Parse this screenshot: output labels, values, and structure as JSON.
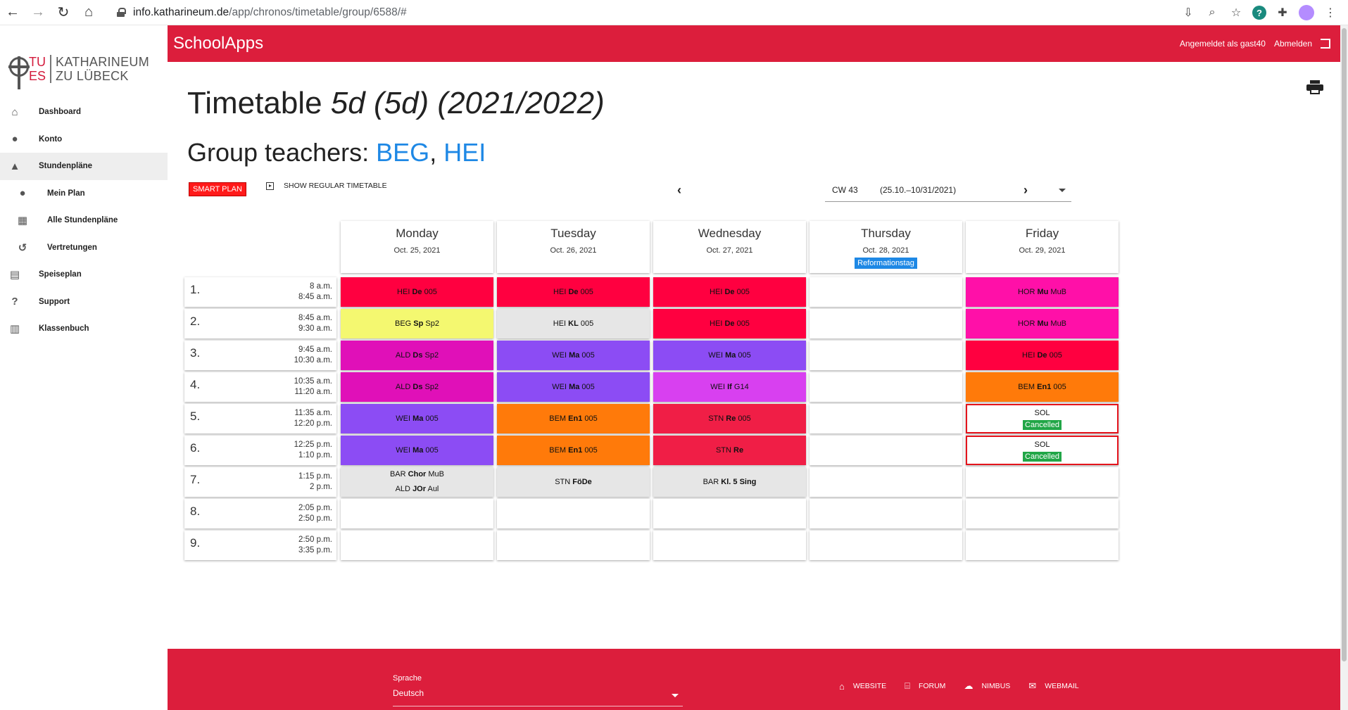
{
  "browser": {
    "url_host": "info.katharineum.de",
    "url_path": "/app/chronos/timetable/group/6588/#"
  },
  "logo": {
    "tues_top": "TU",
    "tues_bottom": "ES",
    "name_line1": "KATHARINEUM",
    "name_line2": "ZU LÜBECK"
  },
  "sidebar": {
    "items": [
      {
        "label": "Dashboard",
        "icon": "home-icon"
      },
      {
        "label": "Konto",
        "icon": "person-icon"
      },
      {
        "label": "Stundenpläne",
        "icon": "school-icon"
      },
      {
        "label": "Mein Plan",
        "icon": "person-icon"
      },
      {
        "label": "Alle Stundenpläne",
        "icon": "grid-icon"
      },
      {
        "label": "Vertretungen",
        "icon": "history-icon"
      },
      {
        "label": "Speiseplan",
        "icon": "pdf-icon"
      },
      {
        "label": "Support",
        "icon": "help-icon"
      },
      {
        "label": "Klassenbuch",
        "icon": "book-icon"
      }
    ]
  },
  "header": {
    "app_title": "SchoolApps",
    "logged_in": "Angemeldet als gast40",
    "logout": "Abmelden"
  },
  "page": {
    "title_plain": "Timetable",
    "title_italic": "5d (5d) (2021/2022)",
    "group_teachers_label": "Group teachers:",
    "teacher1": "BEG",
    "teacher_sep": ",",
    "teacher2": "HEI",
    "smart_plan": "SMART PLAN",
    "show_regular": "SHOW REGULAR TIMETABLE"
  },
  "week": {
    "cw": "CW 43",
    "range": "(25.10.–10/31/2021)"
  },
  "days": [
    {
      "name": "Monday",
      "date": "Oct. 25, 2021",
      "holiday": ""
    },
    {
      "name": "Tuesday",
      "date": "Oct. 26, 2021",
      "holiday": ""
    },
    {
      "name": "Wednesday",
      "date": "Oct. 27, 2021",
      "holiday": ""
    },
    {
      "name": "Thursday",
      "date": "Oct. 28, 2021",
      "holiday": "Reformationstag"
    },
    {
      "name": "Friday",
      "date": "Oct. 29, 2021",
      "holiday": ""
    }
  ],
  "periods": [
    {
      "num": "1.",
      "start": "8 a.m.",
      "end": "8:45 a.m."
    },
    {
      "num": "2.",
      "start": "8:45 a.m.",
      "end": "9:30 a.m."
    },
    {
      "num": "3.",
      "start": "9:45 a.m.",
      "end": "10:30 a.m."
    },
    {
      "num": "4.",
      "start": "10:35 a.m.",
      "end": "11:20 a.m."
    },
    {
      "num": "5.",
      "start": "11:35 a.m.",
      "end": "12:20 p.m."
    },
    {
      "num": "6.",
      "start": "12:25 p.m.",
      "end": "1:10 p.m."
    },
    {
      "num": "7.",
      "start": "1:15 p.m.",
      "end": "2 p.m."
    },
    {
      "num": "8.",
      "start": "2:05 p.m.",
      "end": "2:50 p.m."
    },
    {
      "num": "9.",
      "start": "2:50 p.m.",
      "end": "3:35 p.m."
    }
  ],
  "cancelled_label": "Cancelled",
  "lessons": [
    [
      {
        "color": "#ff0040",
        "lines": [
          [
            "HEI ",
            "De",
            " 005"
          ]
        ]
      },
      {
        "color": "#f4f870",
        "lines": [
          [
            "BEG ",
            "Sp",
            " Sp2"
          ]
        ]
      },
      {
        "color": "#e010b8",
        "lines": [
          [
            "ALD ",
            "Ds",
            " Sp2"
          ]
        ]
      },
      {
        "color": "#e010b8",
        "lines": [
          [
            "ALD ",
            "Ds",
            " Sp2"
          ]
        ]
      },
      {
        "color": "#8c4cf4",
        "lines": [
          [
            "WEI ",
            "Ma",
            " 005"
          ]
        ]
      },
      {
        "color": "#8c4cf4",
        "lines": [
          [
            "WEI ",
            "Ma",
            " 005"
          ]
        ]
      },
      {
        "color": "#e6e6e6",
        "lines": [
          [
            "BAR ",
            "Chor",
            " MuB"
          ],
          [
            "ALD ",
            "JOr",
            " Aul"
          ]
        ]
      },
      null,
      null
    ],
    [
      {
        "color": "#ff0040",
        "lines": [
          [
            "HEI ",
            "De",
            " 005"
          ]
        ]
      },
      {
        "color": "#e6e6e6",
        "lines": [
          [
            "HEI ",
            "KL",
            " 005"
          ]
        ]
      },
      {
        "color": "#8c4cf4",
        "lines": [
          [
            "WEI ",
            "Ma",
            " 005"
          ]
        ]
      },
      {
        "color": "#8c4cf4",
        "lines": [
          [
            "WEI ",
            "Ma",
            " 005"
          ]
        ]
      },
      {
        "color": "#ff7a0a",
        "lines": [
          [
            "BEM ",
            "En1",
            " 005"
          ]
        ]
      },
      {
        "color": "#ff7a0a",
        "lines": [
          [
            "BEM ",
            "En1",
            " 005"
          ]
        ]
      },
      {
        "color": "#e6e6e6",
        "lines": [
          [
            "STN ",
            "FöDe",
            ""
          ]
        ]
      },
      null,
      null
    ],
    [
      {
        "color": "#ff0040",
        "lines": [
          [
            "HEI ",
            "De",
            " 005"
          ]
        ]
      },
      {
        "color": "#ff0040",
        "lines": [
          [
            "HEI ",
            "De",
            " 005"
          ]
        ]
      },
      {
        "color": "#8c4cf4",
        "lines": [
          [
            "WEI ",
            "Ma",
            " 005"
          ]
        ]
      },
      {
        "color": "#d840f0",
        "lines": [
          [
            "WEI ",
            "If",
            " G14"
          ]
        ]
      },
      {
        "color": "#f01e46",
        "lines": [
          [
            "STN ",
            "Re",
            " 005"
          ]
        ]
      },
      {
        "color": "#f01e46",
        "lines": [
          [
            "STN ",
            "Re",
            ""
          ]
        ]
      },
      {
        "color": "#e6e6e6",
        "lines": [
          [
            "BAR ",
            "Kl. 5 Sing",
            ""
          ]
        ]
      },
      null,
      null
    ],
    [
      null,
      null,
      null,
      null,
      null,
      null,
      null,
      null,
      null
    ],
    [
      {
        "color": "#ff10a8",
        "lines": [
          [
            "HOR ",
            "Mu",
            " MuB"
          ]
        ]
      },
      {
        "color": "#ff10a8",
        "lines": [
          [
            "HOR ",
            "Mu",
            " MuB"
          ]
        ]
      },
      {
        "color": "#ff0040",
        "lines": [
          [
            "HEI ",
            "De",
            " 005"
          ]
        ]
      },
      {
        "color": "#ff7a0a",
        "lines": [
          [
            "BEM ",
            "En1",
            " 005"
          ]
        ]
      },
      {
        "color": "#ffffff",
        "cancelled": true,
        "lines": [
          [
            "",
            "SOL",
            ""
          ]
        ]
      },
      {
        "color": "#ffffff",
        "cancelled": true,
        "lines": [
          [
            "",
            "SOL",
            ""
          ]
        ]
      },
      null,
      null,
      null
    ]
  ],
  "footer": {
    "lang_label": "Sprache",
    "lang_value": "Deutsch",
    "links": [
      {
        "label": "WEBSITE",
        "icon": "home-icon"
      },
      {
        "label": "FORUM",
        "icon": "bank-icon"
      },
      {
        "label": "NIMBUS",
        "icon": "cloud-icon"
      },
      {
        "label": "WEBMAIL",
        "icon": "mail-icon"
      }
    ]
  }
}
